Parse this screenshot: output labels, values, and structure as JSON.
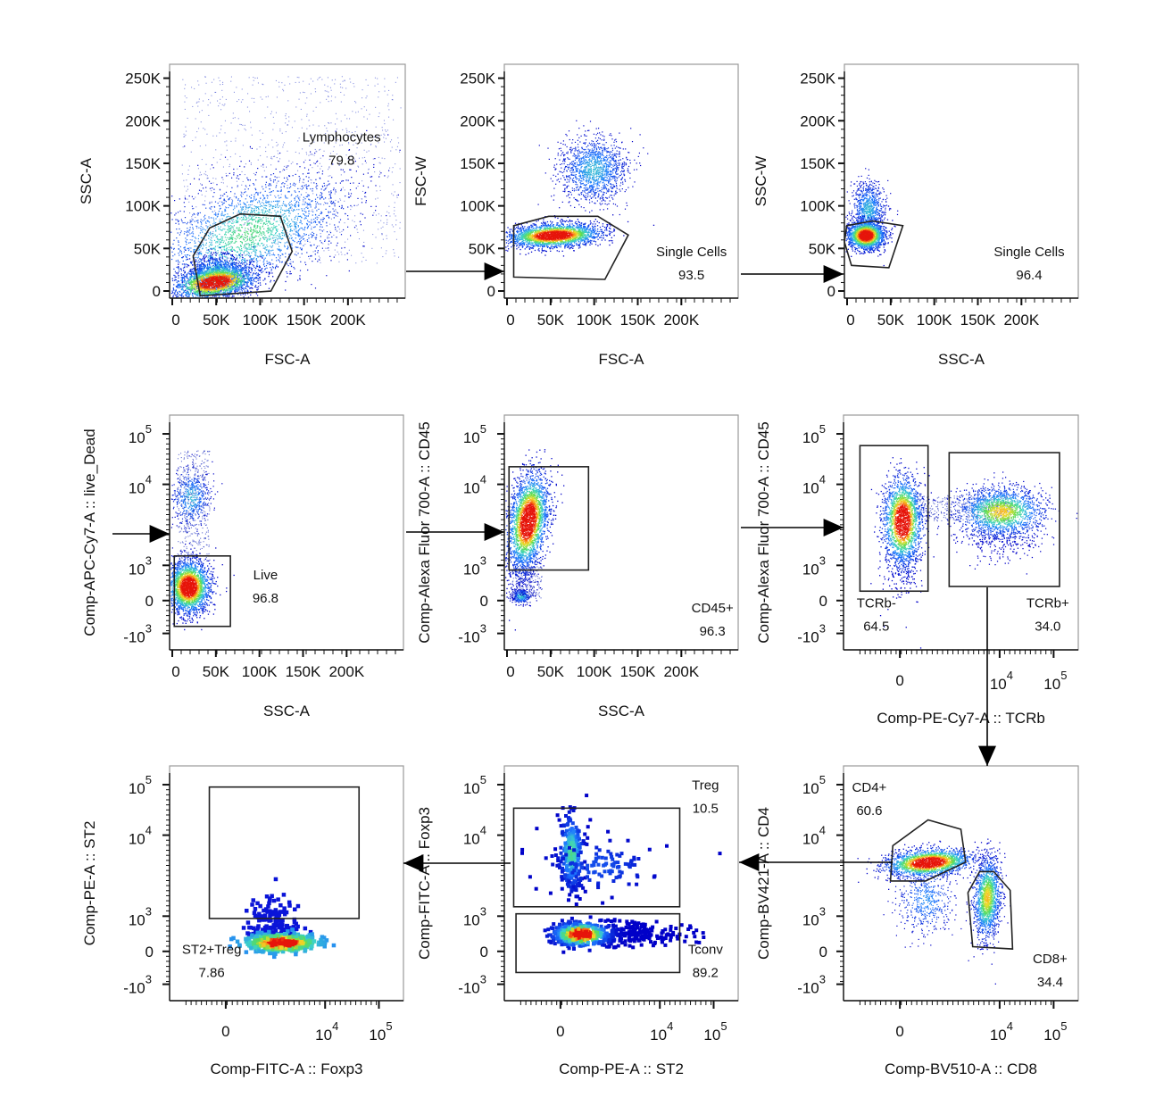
{
  "figure": {
    "description": "Flow cytometry gating strategy: Lymphocytes -> Single Cells (FSC) -> Single Cells (SSC) -> Live -> CD45+ -> TCRb+ -> CD4+ -> Treg -> ST2+Treg",
    "colors": {
      "density_low": "#0000c8",
      "density_mid": "#3cd060",
      "density_high": "#e82010",
      "gate": "#222222",
      "arrow": "#000000"
    }
  },
  "chart_data": [
    {
      "type": "scatter",
      "id": "p1",
      "title": "",
      "xlabel": "FSC-A",
      "ylabel": "SSC-A",
      "xscale": "linear",
      "yscale": "linear",
      "xlim": [
        0,
        262144
      ],
      "ylim": [
        0,
        262144
      ],
      "xticks": [
        "0",
        "50K",
        "100K",
        "150K",
        "200K"
      ],
      "yticks": [
        "0",
        "50K",
        "100K",
        "150K",
        "200K",
        "250K"
      ],
      "gates": [
        {
          "name": "Lymphocytes",
          "percent": "79.8",
          "shape": "polygon",
          "vertices": [
            [
              25000,
              20000
            ],
            [
              45000,
              40000
            ],
            [
              78000,
              57000
            ],
            [
              122000,
              52000
            ],
            [
              135000,
              28000
            ],
            [
              115000,
              8000
            ],
            [
              32000,
              2000
            ]
          ]
        }
      ],
      "populations": [
        {
          "label": "main",
          "center": [
            50000,
            22000
          ],
          "spread": [
            15000,
            9000
          ],
          "intensity": "high"
        }
      ]
    },
    {
      "type": "scatter",
      "id": "p2",
      "title": "",
      "xlabel": "FSC-A",
      "ylabel": "FSC-W",
      "xscale": "linear",
      "yscale": "linear",
      "xlim": [
        0,
        262144
      ],
      "ylim": [
        0,
        262144
      ],
      "xticks": [
        "0",
        "50K",
        "100K",
        "150K",
        "200K"
      ],
      "yticks": [
        "0",
        "50K",
        "100K",
        "150K",
        "200K",
        "250K"
      ],
      "gates": [
        {
          "name": "Single Cells",
          "percent": "93.5",
          "shape": "polygon",
          "vertices": [
            [
              8000,
              80000
            ],
            [
              50000,
              90000
            ],
            [
              105000,
              90000
            ],
            [
              140000,
              70000
            ],
            [
              113000,
              24000
            ],
            [
              8000,
              23000
            ]
          ]
        }
      ],
      "populations": [
        {
          "label": "singlets",
          "center": [
            55000,
            72000
          ],
          "spread": [
            12000,
            4000
          ],
          "intensity": "high"
        },
        {
          "label": "doublets",
          "center": [
            100000,
            125000
          ],
          "spread": [
            12000,
            14000
          ],
          "intensity": "low"
        }
      ]
    },
    {
      "type": "scatter",
      "id": "p3",
      "title": "",
      "xlabel": "SSC-A",
      "ylabel": "SSC-W",
      "xscale": "linear",
      "yscale": "linear",
      "xlim": [
        0,
        262144
      ],
      "ylim": [
        0,
        262144
      ],
      "xticks": [
        "0",
        "50K",
        "100K",
        "150K",
        "200K"
      ],
      "yticks": [
        "0",
        "50K",
        "100K",
        "150K",
        "200K",
        "250K"
      ],
      "gates": [
        {
          "name": "Single Cells",
          "percent": "96.4",
          "shape": "polygon",
          "vertices": [
            [
              0,
              80000
            ],
            [
              30000,
              87000
            ],
            [
              65000,
              81000
            ],
            [
              50000,
              34000
            ],
            [
              5000,
              36000
            ],
            [
              0,
              55000
            ]
          ]
        }
      ],
      "populations": [
        {
          "label": "singlets",
          "center": [
            20000,
            67000
          ],
          "spread": [
            7000,
            5000
          ],
          "intensity": "high"
        }
      ]
    },
    {
      "type": "scatter",
      "id": "p4",
      "title": "",
      "xlabel": "SSC-A",
      "ylabel": "Comp-APC-Cy7-A :: live_Dead",
      "xscale": "linear",
      "yscale": "biexponential",
      "xlim": [
        0,
        262144
      ],
      "ylim": [
        "-10^3",
        "10^5"
      ],
      "xticks": [
        "0",
        "50K",
        "100K",
        "150K",
        "200K"
      ],
      "yticks": [
        "-10^3",
        "0",
        "10^3",
        "10^4",
        "10^5"
      ],
      "gates": [
        {
          "name": "Live",
          "percent": "96.8",
          "shape": "rectangle",
          "x_range": [
            2000,
            68000
          ],
          "y_range": [
            "-600",
            "1200"
          ]
        }
      ],
      "populations": [
        {
          "label": "live",
          "center": [
            20000,
            "200"
          ],
          "spread": [
            8000,
            "medium"
          ],
          "intensity": "high"
        },
        {
          "label": "dead",
          "center": [
            15000,
            "9000"
          ],
          "spread": [
            6000,
            "small"
          ],
          "intensity": "low"
        }
      ]
    },
    {
      "type": "scatter",
      "id": "p5",
      "title": "",
      "xlabel": "SSC-A",
      "ylabel": "Comp-Alexa Fluor 700-A :: CD45",
      "xscale": "linear",
      "yscale": "biexponential",
      "xlim": [
        0,
        262144
      ],
      "ylim": [
        "-10^3",
        "10^5"
      ],
      "xticks": [
        "0",
        "50K",
        "100K",
        "150K",
        "200K"
      ],
      "yticks": [
        "-10^3",
        "0",
        "10^3",
        "10^4",
        "10^5"
      ],
      "gates": [
        {
          "name": "CD45+",
          "percent": "96.3",
          "shape": "rectangle",
          "x_range": [
            5000,
            95000
          ],
          "y_range": [
            "700",
            "30000"
          ]
        }
      ],
      "populations": [
        {
          "label": "CD45+",
          "center": [
            20000,
            "5500"
          ],
          "spread": [
            9000,
            "wide"
          ],
          "intensity": "high"
        },
        {
          "label": "CD45-",
          "center": [
            15000,
            "0"
          ],
          "spread": [
            6000,
            "small"
          ],
          "intensity": "low"
        }
      ]
    },
    {
      "type": "scatter",
      "id": "p6",
      "title": "",
      "xlabel": "Comp-PE-Cy7-A :: TCRb",
      "ylabel": "Comp-Alexa Fluor 700-A :: CD45",
      "xscale": "biexponential",
      "yscale": "biexponential",
      "xlim": [
        "-10^3",
        "10^5"
      ],
      "ylim": [
        "-10^3",
        "10^5"
      ],
      "xticks": [
        "0",
        "10^4",
        "10^5"
      ],
      "yticks": [
        "-10^3",
        "0",
        "10^3",
        "10^4",
        "10^5"
      ],
      "gates": [
        {
          "name": "TCRb-",
          "percent": "64.5",
          "shape": "rectangle",
          "x_range": [
            "-1000",
            "1500"
          ],
          "y_range": [
            "300",
            "80000"
          ]
        },
        {
          "name": "TCRb+",
          "percent": "34.0",
          "shape": "rectangle",
          "x_range": [
            "2000",
            "60000"
          ],
          "y_range": [
            "300",
            "55000"
          ]
        }
      ],
      "populations": [
        {
          "label": "TCRb-",
          "center": [
            "0",
            "6000"
          ],
          "spread": [
            "small",
            "wide"
          ],
          "intensity": "high"
        },
        {
          "label": "TCRb+",
          "center": [
            "8000",
            "7000"
          ],
          "spread": [
            "wide",
            "small"
          ],
          "intensity": "medium"
        }
      ]
    },
    {
      "type": "scatter",
      "id": "p9",
      "title": "",
      "xlabel": "Comp-BV510-A :: CD8",
      "ylabel": "Comp-BV421-A :: CD4",
      "xscale": "biexponential",
      "yscale": "biexponential",
      "xlim": [
        "-10^3",
        "10^5"
      ],
      "ylim": [
        "-10^3",
        "10^5"
      ],
      "xticks": [
        "0",
        "10^4",
        "10^5"
      ],
      "yticks": [
        "-10^3",
        "0",
        "10^3",
        "10^4",
        "10^5"
      ],
      "gates": [
        {
          "name": "CD4+",
          "percent": "60.6",
          "shape": "polygon"
        },
        {
          "name": "CD8+",
          "percent": "34.4",
          "shape": "polygon"
        }
      ],
      "populations": [
        {
          "label": "CD4+",
          "center": [
            "600",
            "5500"
          ],
          "spread": [
            "wide",
            "small"
          ],
          "intensity": "high"
        },
        {
          "label": "CD8+",
          "center": [
            "5500",
            "1500"
          ],
          "spread": [
            "small",
            "wide"
          ],
          "intensity": "medium"
        }
      ]
    },
    {
      "type": "scatter",
      "id": "p8",
      "title": "",
      "xlabel": "Comp-PE-A :: ST2",
      "ylabel": "Comp-FITC-A :: Foxp3",
      "xscale": "biexponential",
      "yscale": "biexponential",
      "xlim": [
        "-10^3",
        "10^5"
      ],
      "ylim": [
        "-10^3",
        "10^5"
      ],
      "xticks": [
        "0",
        "10^4",
        "10^5"
      ],
      "yticks": [
        "-10^3",
        "0",
        "10^3",
        "10^4",
        "10^5"
      ],
      "gates": [
        {
          "name": "Treg",
          "percent": "10.5",
          "shape": "rectangle",
          "x_range": [
            "-700",
            "15000"
          ],
          "y_range": [
            "1050",
            "45000"
          ]
        },
        {
          "name": "Tconv",
          "percent": "89.2",
          "shape": "rectangle",
          "x_range": [
            "-600",
            "15000"
          ],
          "y_range": [
            "-500",
            "900"
          ]
        }
      ],
      "populations": [
        {
          "label": "Tconv",
          "center": [
            "0",
            "250"
          ],
          "spread": [
            "small",
            "small"
          ],
          "intensity": "high"
        },
        {
          "label": "Treg",
          "center": [
            "0",
            "4000"
          ],
          "spread": [
            "small",
            "medium"
          ],
          "intensity": "low"
        }
      ]
    },
    {
      "type": "scatter",
      "id": "p7",
      "title": "",
      "xlabel": "Comp-FITC-A :: Foxp3",
      "ylabel": "Comp-PE-A :: ST2",
      "xscale": "biexponential",
      "yscale": "biexponential",
      "xlim": [
        "-10^3",
        "10^5"
      ],
      "ylim": [
        "-10^3",
        "10^5"
      ],
      "xticks": [
        "0",
        "10^4",
        "10^5"
      ],
      "yticks": [
        "-10^3",
        "0",
        "10^3",
        "10^4",
        "10^5"
      ],
      "gates": [
        {
          "name": "ST2+Treg",
          "percent": "7.86",
          "shape": "rectangle",
          "x_range": [
            "-500",
            "35000"
          ],
          "y_range": [
            "800",
            "100000"
          ]
        }
      ],
      "populations": [
        {
          "label": "Treg",
          "center": [
            "3500",
            "200"
          ],
          "spread": [
            "medium",
            "small"
          ],
          "intensity": "high"
        }
      ]
    }
  ],
  "arrows": [
    {
      "from": "p1",
      "to": "p2",
      "direction": "right"
    },
    {
      "from": "p2",
      "to": "p3",
      "direction": "right"
    },
    {
      "from": "into-row2",
      "to": "p4",
      "direction": "right"
    },
    {
      "from": "p4",
      "to": "p5",
      "direction": "right"
    },
    {
      "from": "p5",
      "to": "p6",
      "direction": "right"
    },
    {
      "from": "p6",
      "to": "p9",
      "direction": "down"
    },
    {
      "from": "p9",
      "to": "p8",
      "direction": "left"
    },
    {
      "from": "p8",
      "to": "p7",
      "direction": "left"
    }
  ]
}
